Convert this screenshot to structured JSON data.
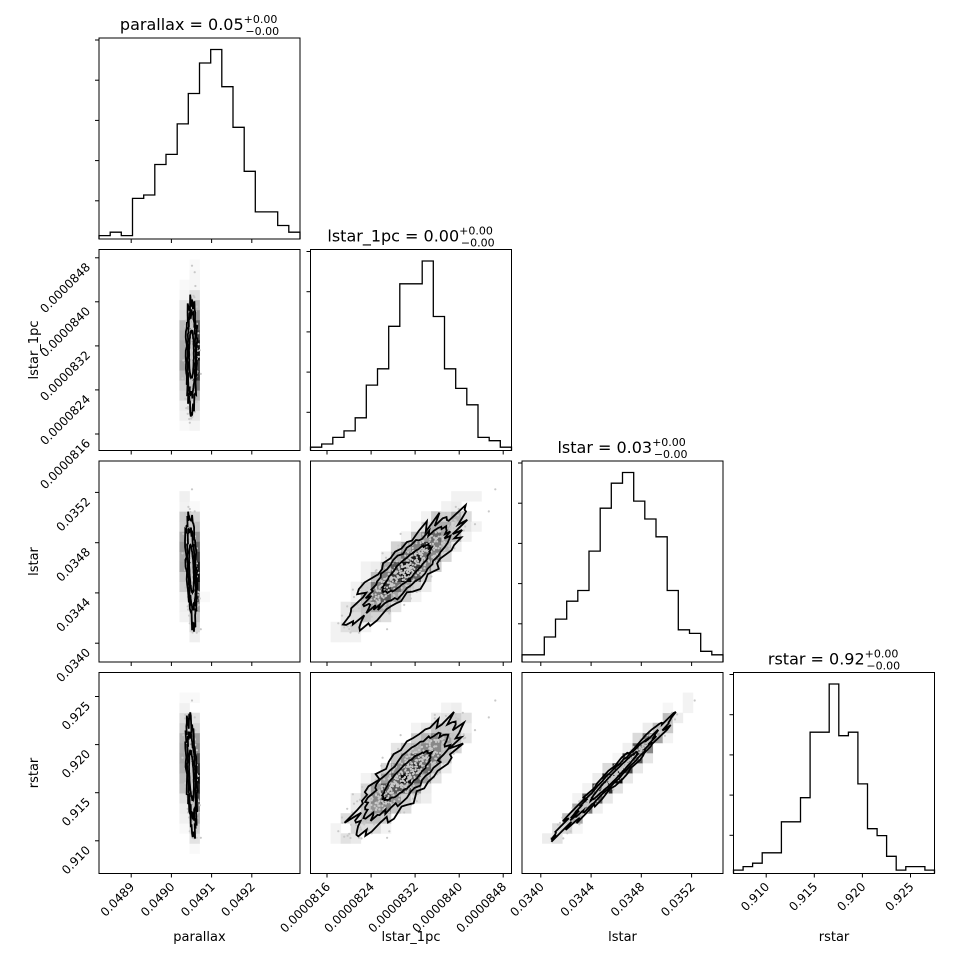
{
  "chart_data": {
    "type": "corner",
    "parameters": [
      "parallax",
      "lstar_1pc",
      "lstar",
      "rstar"
    ],
    "titles": [
      {
        "parameter": "parallax",
        "name": "parallax",
        "value": "0.05",
        "plus": "+0.00",
        "minus": "−0.00"
      },
      {
        "parameter": "lstar_1pc",
        "name": "lstar_1pc",
        "value": "0.00",
        "plus": "+0.00",
        "minus": "−0.00"
      },
      {
        "parameter": "lstar",
        "name": "lstar",
        "value": "0.03",
        "plus": "+0.00",
        "minus": "−0.00"
      },
      {
        "parameter": "rstar",
        "name": "rstar",
        "value": "0.92",
        "plus": "+0.00",
        "minus": "−0.00"
      }
    ],
    "ranges": {
      "parallax": [
        0.04882,
        0.04932
      ],
      "lstar_1pc": [
        8.13e-05,
        8.495e-05
      ],
      "lstar": [
        0.03385,
        0.03545
      ],
      "rstar": [
        0.9066,
        0.9275
      ]
    },
    "ticks": {
      "parallax": [
        "0.0489",
        "0.0490",
        "0.0491",
        "0.0492"
      ],
      "lstar_1pc": [
        "0.0000816",
        "0.0000824",
        "0.0000832",
        "0.0000840",
        "0.0000848"
      ],
      "lstar": [
        "0.0340",
        "0.0344",
        "0.0348",
        "0.0352"
      ],
      "rstar": [
        "0.910",
        "0.915",
        "0.920",
        "0.925"
      ]
    },
    "axis_labels": {
      "x": [
        "parallax",
        "lstar_1pc",
        "lstar",
        "rstar"
      ],
      "y": [
        "lstar_1pc",
        "lstar",
        "rstar"
      ]
    },
    "histograms": {
      "parallax": {
        "edges": [
          0.04882,
          0.04932
        ],
        "counts": [
          1,
          2,
          1,
          12,
          13,
          22,
          25,
          34,
          43,
          52,
          56,
          45,
          33,
          20,
          8,
          8,
          4,
          2
        ]
      },
      "lstar_1pc": {
        "edges": [
          8.13e-05,
          8.495e-05
        ],
        "counts": [
          1,
          2,
          4,
          6,
          10,
          20,
          25,
          38,
          51,
          51,
          58,
          41,
          25,
          19,
          14,
          4,
          3,
          1
        ]
      },
      "lstar": {
        "edges": [
          0.03385,
          0.03545
        ],
        "counts": [
          2,
          2,
          7,
          12,
          17,
          20,
          31,
          43,
          50,
          53,
          45,
          40,
          35,
          20,
          9,
          8,
          3,
          2
        ]
      },
      "rstar": {
        "edges": [
          0.9066,
          0.9275
        ],
        "counts": [
          1,
          2,
          3,
          6,
          6,
          15,
          15,
          22,
          41,
          41,
          55,
          40,
          41,
          26,
          13,
          11,
          5,
          1,
          2,
          2,
          1
        ]
      }
    },
    "contour_levels": 3,
    "grid": false,
    "legend": "none"
  }
}
